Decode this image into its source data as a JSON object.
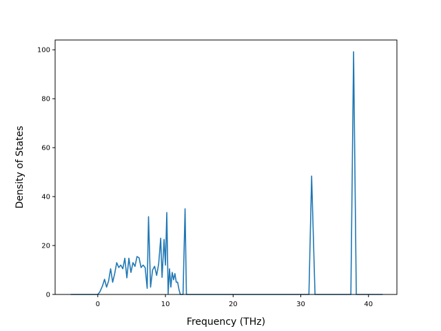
{
  "chart_data": {
    "type": "line",
    "title": "",
    "xlabel": "Frequency (THz)",
    "ylabel": "Density of States",
    "xlim": [
      -6.3,
      44.2
    ],
    "ylim": [
      0,
      104
    ],
    "x_ticks": [
      0,
      10,
      20,
      30,
      40
    ],
    "y_ticks": [
      0,
      20,
      40,
      60,
      80,
      100
    ],
    "grid": false,
    "legend": "none",
    "series": [
      {
        "color": "#1f77b4",
        "points": [
          [
            -4.0,
            0
          ],
          [
            0.0,
            0
          ],
          [
            0.3,
            1.0
          ],
          [
            0.7,
            3.5
          ],
          [
            1.0,
            6.2
          ],
          [
            1.3,
            3.0
          ],
          [
            1.6,
            5.5
          ],
          [
            1.9,
            10.5
          ],
          [
            2.2,
            5.0
          ],
          [
            2.5,
            8.5
          ],
          [
            2.8,
            13.0
          ],
          [
            3.1,
            11.0
          ],
          [
            3.4,
            12.0
          ],
          [
            3.7,
            10.5
          ],
          [
            4.0,
            14.8
          ],
          [
            4.3,
            6.8
          ],
          [
            4.6,
            14.8
          ],
          [
            4.9,
            9.0
          ],
          [
            5.2,
            13.0
          ],
          [
            5.5,
            11.5
          ],
          [
            5.8,
            15.5
          ],
          [
            6.1,
            15.0
          ],
          [
            6.4,
            11.0
          ],
          [
            6.7,
            12.0
          ],
          [
            7.0,
            11.0
          ],
          [
            7.3,
            2.5
          ],
          [
            7.5,
            31.8
          ],
          [
            7.8,
            3.0
          ],
          [
            8.1,
            10.0
          ],
          [
            8.4,
            11.5
          ],
          [
            8.7,
            7.8
          ],
          [
            9.0,
            12.5
          ],
          [
            9.3,
            23.0
          ],
          [
            9.5,
            7.0
          ],
          [
            9.8,
            22.5
          ],
          [
            10.0,
            12.0
          ],
          [
            10.2,
            33.5
          ],
          [
            10.4,
            0.3
          ],
          [
            10.6,
            10.5
          ],
          [
            10.8,
            3.0
          ],
          [
            11.0,
            9.0
          ],
          [
            11.2,
            6.0
          ],
          [
            11.4,
            8.5
          ],
          [
            11.6,
            5.0
          ],
          [
            11.8,
            5.0
          ],
          [
            12.0,
            2.0
          ],
          [
            12.2,
            0
          ],
          [
            12.6,
            0
          ],
          [
            12.9,
            35.0
          ],
          [
            13.1,
            0
          ],
          [
            31.2,
            0
          ],
          [
            31.6,
            48.4
          ],
          [
            32.1,
            0
          ],
          [
            37.4,
            0
          ],
          [
            37.8,
            99.2
          ],
          [
            38.2,
            0
          ],
          [
            42.1,
            0
          ]
        ]
      }
    ]
  }
}
